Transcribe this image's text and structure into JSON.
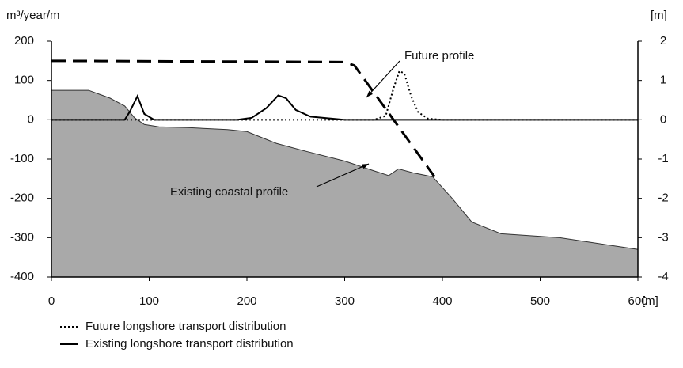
{
  "chart_data": {
    "type": "line",
    "y_label": "m³/year/m",
    "y2_label": "[m]",
    "x_label": "[m]",
    "xlim": [
      0,
      600
    ],
    "xticks": [
      0,
      100,
      200,
      300,
      400,
      500,
      600
    ],
    "ylim": [
      -400,
      200
    ],
    "yticks": [
      -400,
      -300,
      -200,
      -100,
      0,
      100,
      200
    ],
    "y2lim": [
      -4,
      2
    ],
    "y2ticks": [
      -4,
      -3,
      -2,
      -1,
      0,
      1,
      2
    ],
    "series": [
      {
        "name": "Existing coastal profile",
        "style": "area",
        "axis": "y2",
        "color": "#a9a9a9",
        "legend": false,
        "x": [
          0,
          38,
          60,
          75,
          85,
          95,
          110,
          140,
          180,
          200,
          230,
          260,
          300,
          330,
          345,
          355,
          370,
          390,
          410,
          430,
          460,
          520,
          600
        ],
        "values": [
          0.75,
          0.75,
          0.55,
          0.35,
          0.05,
          -0.12,
          -0.18,
          -0.2,
          -0.25,
          -0.3,
          -0.6,
          -0.8,
          -1.05,
          -1.3,
          -1.42,
          -1.25,
          -1.35,
          -1.45,
          -2.0,
          -2.6,
          -2.9,
          -3.0,
          -3.3
        ]
      },
      {
        "name": "Future profile",
        "style": "dashed",
        "axis": "y2",
        "color": "#000000",
        "legend": false,
        "x": [
          0,
          300,
          310,
          392
        ],
        "values": [
          1.5,
          1.47,
          1.38,
          -1.45
        ]
      },
      {
        "name": "Future longshore transport distribution",
        "style": "dotted",
        "color": "#000000",
        "legend": true,
        "x": [
          0,
          330,
          342,
          350,
          356,
          361,
          368,
          375,
          385,
          400,
          600
        ],
        "values": [
          0,
          0,
          10,
          80,
          124,
          118,
          60,
          20,
          3,
          0,
          0
        ]
      },
      {
        "name": "Existing longshore transport distribution",
        "style": "solid",
        "color": "#000000",
        "legend": true,
        "x": [
          0,
          75,
          80,
          88,
          95,
          105,
          190,
          205,
          220,
          232,
          240,
          250,
          265,
          300,
          600
        ],
        "values": [
          0,
          0,
          20,
          60,
          15,
          0,
          0,
          5,
          30,
          62,
          55,
          25,
          8,
          0,
          0
        ]
      }
    ]
  }
}
